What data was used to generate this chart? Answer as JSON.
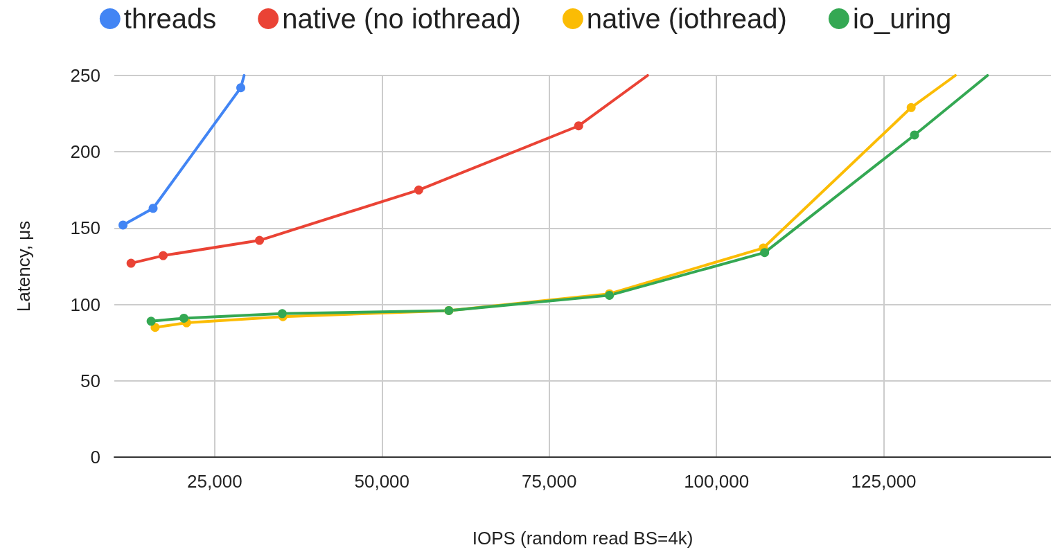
{
  "chart_data": {
    "type": "line",
    "xlabel": "IOPS (random read BS=4k)",
    "ylabel": "Latency, μs",
    "xlim": [
      10000,
      150000
    ],
    "xticks": [
      {
        "value": 25000,
        "label": "25,000"
      },
      {
        "value": 50000,
        "label": "50,000"
      },
      {
        "value": 75000,
        "label": "75,000"
      },
      {
        "value": 100000,
        "label": "100,000"
      },
      {
        "value": 125000,
        "label": "125,000"
      }
    ],
    "ylim": [
      0,
      250
    ],
    "yticks": [
      0,
      50,
      100,
      150,
      200,
      250
    ],
    "grid": true,
    "legend": "top",
    "marker": "circle",
    "line_style": "solid",
    "series": [
      {
        "name": "threads",
        "color": "#4285f4",
        "x": [
          11300,
          15800,
          28900,
          29400
        ],
        "values": [
          152,
          163,
          242,
          250
        ]
      },
      {
        "name": "native (no iothread)",
        "color": "#ea4335",
        "x": [
          12500,
          17300,
          31700,
          55500,
          79400,
          89700
        ],
        "values": [
          127,
          132,
          142,
          175,
          217,
          250
        ]
      },
      {
        "name": "native (iothread)",
        "color": "#fbbc04",
        "x": [
          16100,
          20800,
          35200,
          60000,
          84000,
          107000,
          129100,
          135700
        ],
        "values": [
          85,
          88,
          92,
          96,
          107,
          137,
          229,
          250
        ]
      },
      {
        "name": "io_uring",
        "color": "#34a853",
        "x": [
          15500,
          20400,
          35100,
          60000,
          84000,
          107200,
          129600,
          140500
        ],
        "values": [
          89,
          91,
          94,
          96,
          106,
          134,
          211,
          250
        ]
      }
    ]
  }
}
